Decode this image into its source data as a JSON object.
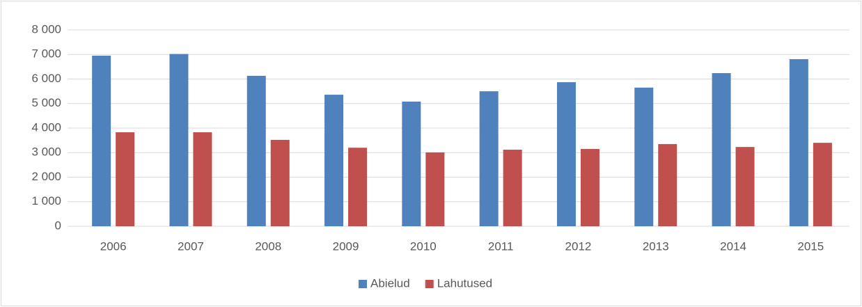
{
  "chart_data": {
    "type": "bar",
    "categories": [
      "2006",
      "2007",
      "2008",
      "2009",
      "2010",
      "2011",
      "2012",
      "2013",
      "2014",
      "2015"
    ],
    "series": [
      {
        "name": "Abielud",
        "color": "#4f81bd",
        "values": [
          6950,
          7020,
          6130,
          5360,
          5080,
          5500,
          5870,
          5650,
          6240,
          6810
        ]
      },
      {
        "name": "Lahutused",
        "color": "#c0504d",
        "values": [
          3830,
          3830,
          3520,
          3200,
          3010,
          3120,
          3150,
          3350,
          3230,
          3400
        ]
      }
    ],
    "ylim": [
      0,
      8000
    ],
    "yticks": [
      0,
      {
        "value": 1000,
        "label": "1 000"
      },
      {
        "value": 2000,
        "label": "2 000"
      },
      {
        "value": 3000,
        "label": "3 000"
      },
      {
        "value": 4000,
        "label": "4 000"
      },
      {
        "value": 5000,
        "label": "5 000"
      },
      {
        "value": 6000,
        "label": "6 000"
      },
      {
        "value": 7000,
        "label": "7 000"
      },
      {
        "value": 8000,
        "label": "8 000"
      }
    ],
    "grid": true,
    "legend": "bottom"
  }
}
